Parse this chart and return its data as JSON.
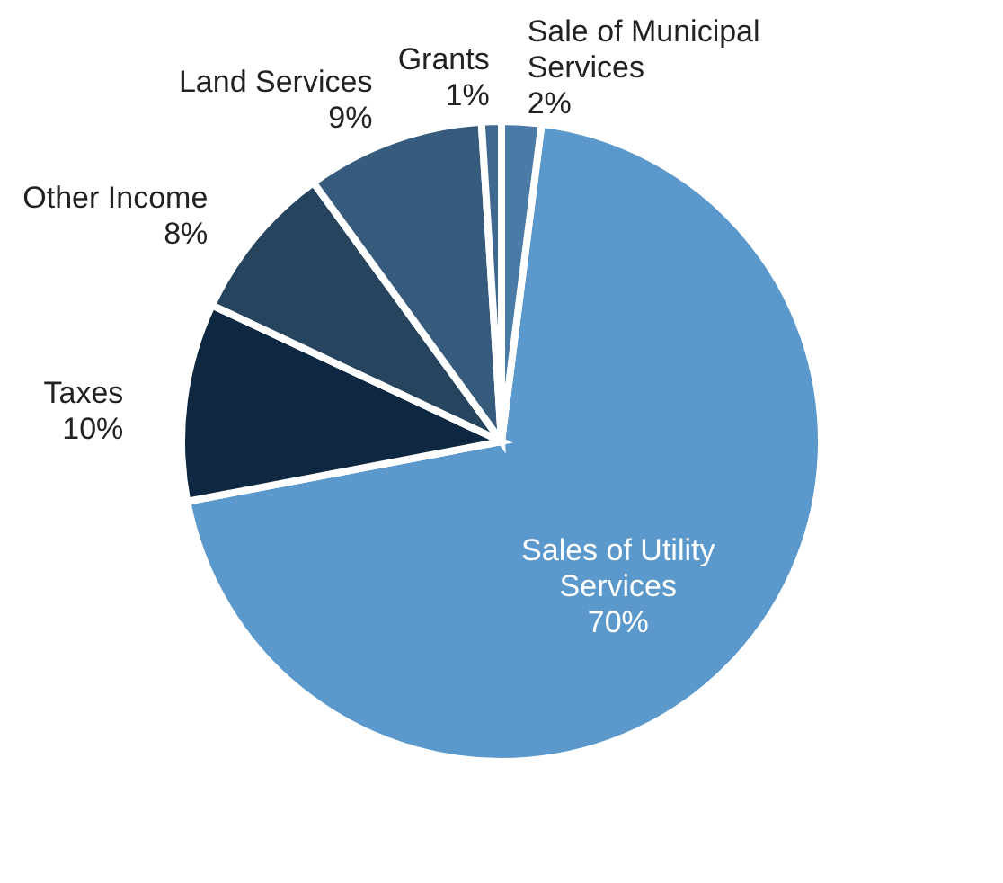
{
  "chart_data": {
    "type": "pie",
    "categories": [
      "Sales of Utility Services",
      "Taxes",
      "Other Income",
      "Land Services",
      "Grants",
      "Sale of Municipal Services"
    ],
    "values": [
      70,
      10,
      8,
      9,
      1,
      2
    ],
    "value_labels": [
      "70%",
      "10%",
      "8%",
      "9%",
      "1%",
      "2%"
    ],
    "colors": [
      "#5b98cb",
      "#0d2840",
      "#27445f",
      "#365b7d",
      "#3f6990",
      "#4a7aa6"
    ]
  }
}
